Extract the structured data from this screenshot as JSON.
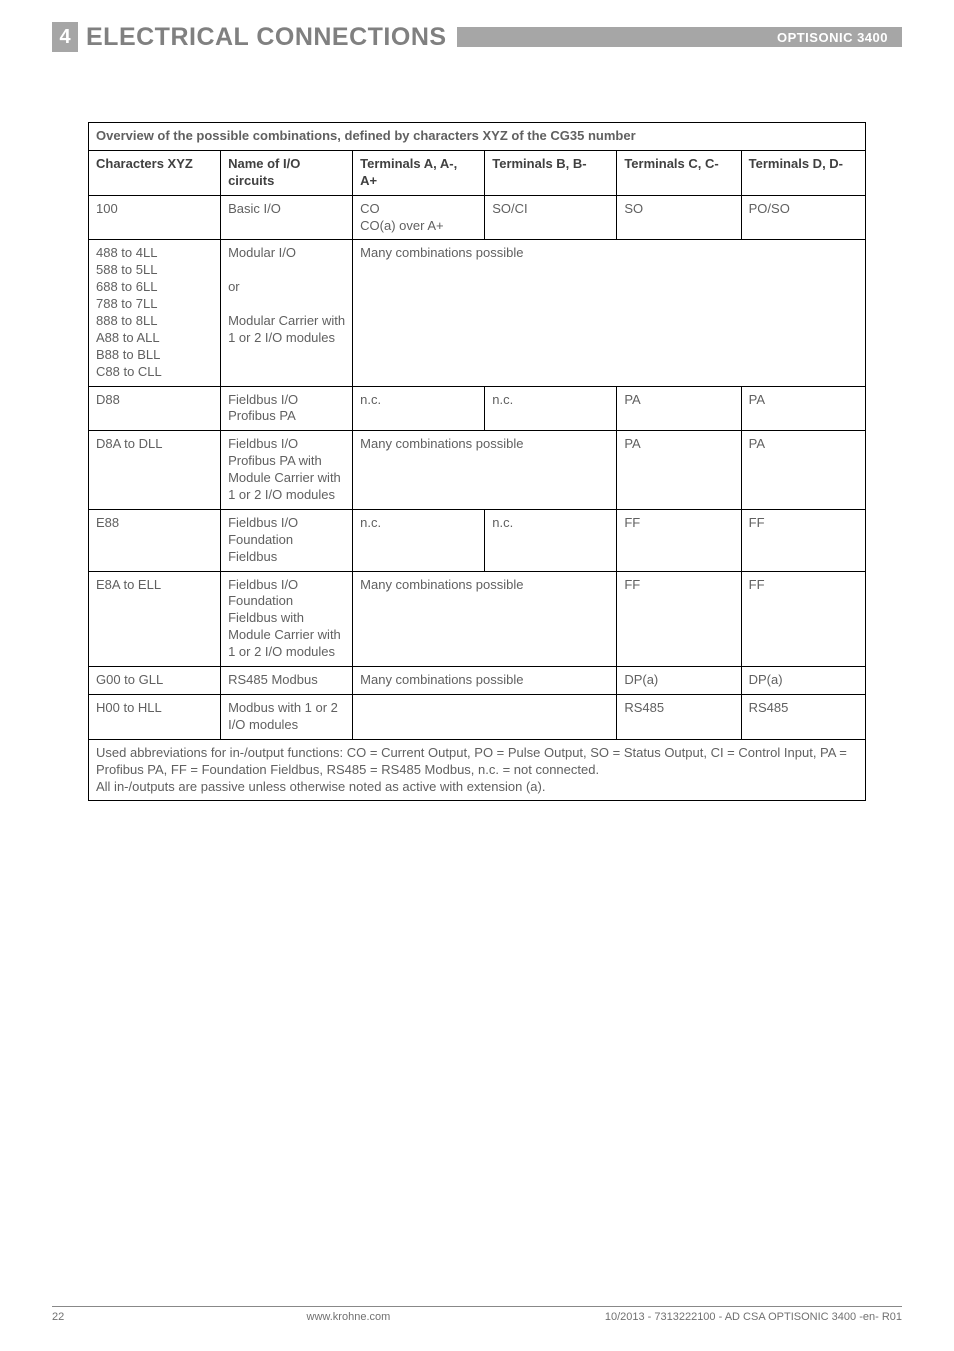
{
  "header": {
    "section_num": "4",
    "section_title": "ELECTRICAL CONNECTIONS",
    "doc_title": "OPTISONIC 3400"
  },
  "table": {
    "caption": "Overview of the possible combinations, defined by characters XYZ of the CG35 number",
    "columns": [
      "Characters XYZ",
      "Name of I/O circuits",
      "Terminals A, A-, A+",
      "Terminals B, B-",
      "Terminals C, C-",
      "Terminals D, D-"
    ],
    "rows": {
      "r1": {
        "c0": "100",
        "c1": "Basic I/O",
        "c2": "CO\nCO(a) over A+",
        "c3": "SO/CI",
        "c4": "SO",
        "c5": "PO/SO"
      },
      "r2": {
        "c0": "488 to 4LL\n588 to 5LL\n688 to 6LL\n788 to 7LL\n888 to 8LL\nA88 to ALL\nB88 to BLL\nC88 to CLL",
        "c1": "Modular I/O\n\nor\n\nModular Carrier with 1 or 2 I/O modules",
        "c2": "Many combinations possible"
      },
      "r3": {
        "c0": "D88",
        "c1": "Fieldbus I/O Profibus PA",
        "c2": "n.c.",
        "c3": "n.c.",
        "c4": "PA",
        "c5": "PA"
      },
      "r4": {
        "c0": "D8A to DLL",
        "c1": "Fieldbus I/O Profibus PA with Module Carrier with 1 or 2 I/O modules",
        "c2": "Many combinations possible",
        "c4": "PA",
        "c5": "PA"
      },
      "r5": {
        "c0": "E88",
        "c1": "Fieldbus I/O Foundation Fieldbus",
        "c2": "n.c.",
        "c3": "n.c.",
        "c4": "FF",
        "c5": "FF"
      },
      "r6": {
        "c0": "E8A to ELL",
        "c1": "Fieldbus I/O Foundation Fieldbus with Module Carrier with 1 or 2 I/O modules",
        "c2": "Many combinations possible",
        "c4": "FF",
        "c5": "FF"
      },
      "r7": {
        "c0": "G00 to GLL",
        "c1": "RS485 Modbus",
        "c2": "Many combinations possible",
        "c4": "DP(a)",
        "c5": "DP(a)"
      },
      "r8": {
        "c0": "H00 to HLL",
        "c1": "Modbus with 1 or 2 I/O modules",
        "c2": "",
        "c4": "RS485",
        "c5": "RS485"
      }
    },
    "footnote": "Used abbreviations for in-/output functions: CO = Current Output, PO = Pulse Output, SO = Status Output, CI = Control Input, PA = Profibus PA, FF = Foundation Fieldbus, RS485 = RS485 Modbus, n.c. = not connected.\nAll in-/outputs are passive unless otherwise noted as active with extension (a)."
  },
  "footer": {
    "page": "22",
    "center": "www.krohne.com",
    "right": "10/2013 - 7313222100 - AD CSA OPTISONIC 3400 -en- R01"
  }
}
